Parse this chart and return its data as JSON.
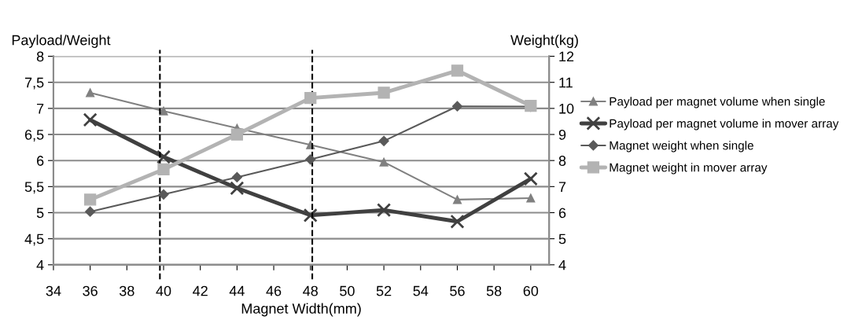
{
  "chart_data": {
    "type": "line",
    "xlabel": "Magnet Width(mm)",
    "ylabel": "Payload/Weight",
    "y2label": "Weight(kg)",
    "x": [
      36,
      40,
      44,
      48,
      52,
      56,
      60
    ],
    "xlim": [
      34,
      61
    ],
    "xticks": [
      34,
      36,
      38,
      40,
      42,
      44,
      46,
      48,
      50,
      52,
      54,
      56,
      58,
      60
    ],
    "ylim": [
      4,
      8
    ],
    "yticks": [
      4,
      {
        "value": 4.5,
        "label": "4,5"
      },
      5,
      {
        "value": 5.5,
        "label": "5,5"
      },
      6,
      {
        "value": 6.5,
        "label": "6,5"
      },
      7,
      {
        "value": 7.5,
        "label": "7,5"
      },
      8
    ],
    "y2lim": [
      4,
      12
    ],
    "y2ticks": [
      4,
      5,
      6,
      7,
      8,
      9,
      10,
      11,
      12
    ],
    "grid": "y",
    "legend": "right",
    "line_style": "solid",
    "series": [
      {
        "name": "Payload per magnet volume when single",
        "color": "#808080",
        "marker": "triangle",
        "values": [
          7.3,
          6.95,
          6.62,
          6.3,
          5.97,
          5.25,
          5.28
        ]
      },
      {
        "name": "Payload per magnet volume in mover array",
        "color": "#404040",
        "marker": "cross",
        "values": [
          6.78,
          6.07,
          5.47,
          4.95,
          5.05,
          4.83,
          5.65
        ]
      },
      {
        "name": "Magnet weight when single",
        "color": "#595959",
        "marker": "diamond",
        "axis": "y2",
        "values": [
          6.04,
          6.7,
          7.36,
          8.04,
          8.75,
          10.08,
          10.07
        ]
      },
      {
        "name": "Magnet weight in mover array",
        "color": "#b3b3b3",
        "marker": "square",
        "axis": "y2",
        "values": [
          6.5,
          7.66,
          9.0,
          10.4,
          10.6,
          11.45,
          10.1
        ]
      }
    ],
    "ref_lines": [
      {
        "axis": "x",
        "value": 39.8,
        "color": "#000000",
        "line_style": "dashed"
      },
      {
        "axis": "x",
        "value": 48.1,
        "color": "#000000",
        "line_style": "dashed"
      }
    ]
  }
}
